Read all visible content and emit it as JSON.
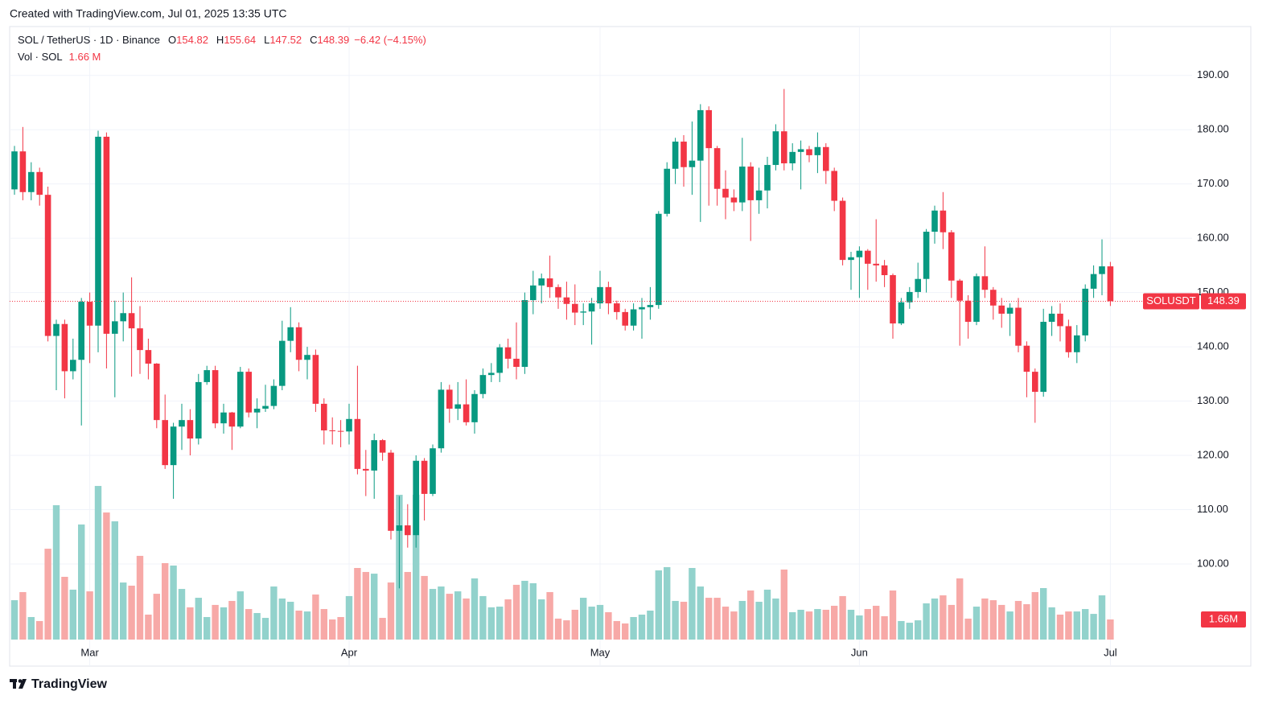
{
  "chart_data": {
    "type": "candlestick",
    "created": "Created with TradingView.com, Jul 01, 2025 13:35 UTC",
    "symbol": "SOL / TetherUS · 1D · Binance",
    "ohlc_labels": [
      "O",
      "H",
      "L",
      "C"
    ],
    "change": "−6.42 (−4.15%)",
    "volume_legend": {
      "label": "Vol · SOL",
      "value": "1.66 M"
    },
    "volume_axis_label": "1.66M",
    "symbol_code": "SOLUSDT",
    "footer": "TradingView",
    "up_color": "#089981",
    "down_color": "#f23645",
    "up_volume_color": "#92d2cc",
    "down_volume_color": "#f7a9a7",
    "grid": true,
    "categories": [
      null,
      null,
      null,
      null,
      null,
      null,
      null,
      null,
      null,
      "Mar",
      null,
      null,
      null,
      null,
      null,
      null,
      null,
      null,
      null,
      null,
      null,
      null,
      null,
      null,
      null,
      null,
      null,
      null,
      null,
      null,
      null,
      null,
      null,
      null,
      null,
      null,
      null,
      null,
      null,
      null,
      "Apr",
      null,
      null,
      null,
      null,
      null,
      null,
      null,
      null,
      null,
      null,
      null,
      null,
      null,
      null,
      null,
      null,
      null,
      null,
      null,
      null,
      null,
      null,
      null,
      null,
      null,
      null,
      null,
      null,
      null,
      "May",
      null,
      null,
      null,
      null,
      null,
      null,
      null,
      null,
      null,
      null,
      null,
      null,
      null,
      null,
      null,
      null,
      null,
      null,
      null,
      null,
      null,
      null,
      null,
      null,
      null,
      null,
      null,
      null,
      null,
      null,
      "Jun",
      null,
      null,
      null,
      null,
      null,
      null,
      null,
      null,
      null,
      null,
      null,
      null,
      null,
      null,
      null,
      null,
      null,
      null,
      null,
      null,
      null,
      null,
      null,
      null,
      null,
      null,
      null,
      null,
      null,
      "Jul"
    ],
    "open": [
      169,
      176,
      168.5,
      172.2,
      168,
      142,
      144.2,
      135.5,
      137.6,
      148.3,
      143.9,
      178.7,
      142.4,
      144.7,
      146.2,
      143.4,
      139.4,
      136.9,
      126.5,
      118.2,
      125.3,
      126.5,
      123.1,
      133.5,
      135.7,
      125.9,
      127.9,
      125.3,
      135.4,
      127.9,
      128.6,
      129.1,
      132.8,
      141.1,
      143.6,
      137.6,
      138.5,
      129.5,
      124.6,
      124.5,
      124.4,
      126.7,
      117.5,
      117.2,
      122.8,
      120.5,
      106.1,
      107.1,
      105.3,
      119,
      112.9,
      121.3,
      132.1,
      128.6,
      129.4,
      126.1,
      131.3,
      134.8,
      135.2,
      139.9,
      137.8,
      136.3,
      148.6,
      151.3,
      152.6,
      151,
      149.1,
      147.9,
      146.3,
      146.5,
      148,
      151,
      148,
      146.4,
      143.9,
      146.9,
      147.3,
      147.7,
      164.5,
      172.8,
      177.8,
      173.1,
      174.3,
      183.6,
      176.6,
      169.1,
      167.5,
      166.6,
      173.2,
      167,
      168.8,
      173.5,
      179.7,
      173.8,
      175.9,
      176.4,
      175.3,
      176.8,
      172.4,
      166.9,
      156,
      156.5,
      157.7,
      155.3,
      155,
      153.2,
      144.3,
      148.2,
      150.1,
      152.5,
      161.2,
      165.1,
      161.1,
      152.2,
      148.5,
      144.6,
      153,
      150.5,
      147.6,
      146.1,
      147.2,
      140.2,
      135.4,
      131.7,
      144.6,
      146.1,
      143.8,
      139,
      142.1,
      150.7,
      153.4,
      154.82
    ],
    "high": [
      177,
      180.5,
      174,
      173,
      169.5,
      145,
      145,
      141.5,
      149,
      150,
      179.8,
      179.5,
      148.5,
      150,
      152.8,
      147.5,
      141.5,
      137,
      131.2,
      126,
      129.5,
      128.5,
      135,
      136.5,
      136.5,
      129.5,
      128,
      136.3,
      136,
      130.5,
      133,
      134,
      144.8,
      147.3,
      144.5,
      140,
      139.5,
      130.5,
      127,
      126.5,
      129.5,
      136.5,
      121,
      124,
      123,
      121,
      112.5,
      111,
      120,
      119.5,
      122,
      133.5,
      133,
      133.5,
      134,
      132,
      136,
      137,
      140.5,
      141.5,
      144.5,
      150,
      154,
      153.5,
      156.8,
      151.5,
      152,
      151.5,
      148,
      149,
      154,
      152,
      148.5,
      147,
      148,
      149,
      151,
      165,
      174,
      178.5,
      179,
      181.5,
      184.7,
      184.3,
      177,
      172.5,
      169,
      178.5,
      174,
      173,
      175,
      181,
      187.5,
      177.5,
      178,
      177,
      179.5,
      177.5,
      173,
      167.5,
      157.5,
      158.5,
      158,
      163.5,
      156,
      153.5,
      149,
      151,
      155.5,
      161.7,
      166,
      168.5,
      161.5,
      152.5,
      149.5,
      153.5,
      158.5,
      151,
      149,
      148,
      149,
      141,
      136,
      147,
      147.5,
      148,
      145,
      144,
      151.5,
      155,
      159.8,
      155.64
    ],
    "low": [
      168,
      167,
      167,
      166,
      141,
      132,
      130.5,
      134,
      125.5,
      137,
      139,
      136,
      130.7,
      141,
      134.5,
      135,
      134,
      125,
      117.5,
      112,
      121,
      120,
      122,
      133,
      125,
      124,
      121,
      125,
      127,
      125,
      128,
      128.5,
      132,
      139,
      135.5,
      134,
      128,
      122,
      122,
      121.5,
      122,
      116.5,
      112.5,
      112,
      119,
      104.5,
      95.5,
      103,
      103,
      108,
      112.5,
      120.5,
      126,
      126.5,
      125.5,
      124,
      130.5,
      133.5,
      133.5,
      136,
      134,
      135,
      146,
      148,
      149,
      147,
      145,
      144,
      144,
      140.4,
      147,
      146,
      145,
      143,
      143,
      141.5,
      145,
      147,
      164,
      170,
      169.5,
      168,
      163,
      166,
      166,
      163.5,
      165,
      165,
      159.5,
      164.5,
      165.5,
      172.5,
      172.5,
      172.5,
      169,
      174,
      172,
      170,
      165,
      155,
      150.5,
      149,
      150.5,
      152,
      151,
      141.5,
      144,
      147,
      149,
      150,
      159,
      158,
      149,
      140.2,
      141.5,
      144,
      149,
      145,
      143.5,
      142,
      139,
      130.7,
      126,
      130.8,
      142,
      141,
      138,
      137,
      141,
      149,
      149.5,
      147.52
    ],
    "close": [
      176,
      168.5,
      172.2,
      168,
      142,
      144.2,
      135.5,
      137.6,
      148.3,
      143.9,
      178.7,
      142.4,
      144.7,
      146.2,
      143.4,
      139.4,
      136.9,
      126.5,
      118.2,
      125.3,
      126.5,
      123.1,
      133.5,
      135.7,
      125.9,
      127.9,
      125.3,
      135.4,
      127.9,
      128.6,
      129.1,
      132.8,
      141.1,
      143.6,
      137.6,
      138.5,
      129.5,
      124.6,
      124.5,
      124.4,
      126.7,
      117.5,
      117.2,
      122.8,
      120.5,
      106.1,
      107.1,
      105.3,
      119,
      112.9,
      121.3,
      132.1,
      128.6,
      129.4,
      126.1,
      131.3,
      134.8,
      135.2,
      139.9,
      137.8,
      136.3,
      148.6,
      151.3,
      152.6,
      151,
      149.1,
      147.9,
      146.3,
      146.5,
      148,
      151,
      148,
      146.4,
      143.9,
      146.9,
      147.3,
      147.7,
      164.5,
      172.8,
      177.8,
      173.1,
      174.3,
      183.6,
      176.6,
      169.1,
      167.5,
      166.6,
      173.2,
      167,
      168.8,
      173.5,
      179.7,
      173.8,
      175.9,
      176.4,
      175.3,
      176.8,
      172.4,
      166.9,
      156,
      156.5,
      157.7,
      155.3,
      155,
      153.2,
      144.3,
      148.2,
      150.1,
      152.5,
      161.2,
      165.1,
      161.1,
      152.2,
      148.5,
      144.6,
      153,
      150.5,
      147.6,
      146.1,
      147.2,
      140.2,
      135.4,
      131.7,
      144.6,
      146.1,
      143.8,
      139,
      142.1,
      150.7,
      153.4,
      154.82,
      148.39
    ],
    "volume": [
      3.25,
      3.92,
      1.86,
      1.53,
      7.5,
      11.09,
      5.18,
      4.12,
      9.5,
      3.98,
      12.68,
      10.49,
      9.76,
      4.71,
      4.45,
      6.91,
      2.06,
      3.78,
      6.31,
      6.11,
      4.18,
      2.66,
      3.45,
      1.86,
      2.86,
      2.66,
      3.19,
      3.98,
      2.52,
      2.19,
      1.79,
      4.38,
      3.39,
      3.12,
      2.39,
      2.32,
      3.72,
      2.52,
      1.66,
      1.86,
      3.59,
      5.91,
      5.58,
      5.44,
      1.79,
      4.71,
      11.95,
      5.58,
      11.95,
      5.25,
      4.18,
      4.38,
      3.78,
      3.98,
      3.39,
      5.05,
      3.59,
      2.66,
      2.72,
      3.32,
      4.52,
      4.85,
      4.65,
      3.32,
      3.92,
      1.73,
      1.59,
      2.46,
      3.45,
      2.72,
      2.86,
      2.26,
      1.53,
      1.33,
      1.86,
      2.06,
      2.39,
      5.71,
      5.98,
      3.19,
      3.12,
      5.91,
      4.38,
      3.45,
      3.45,
      2.72,
      2.32,
      3.19,
      4.05,
      3.12,
      4.12,
      3.39,
      5.78,
      2.26,
      2.46,
      2.32,
      2.52,
      2.46,
      2.79,
      3.59,
      2.46,
      1.99,
      2.52,
      2.79,
      1.93,
      4.05,
      1.53,
      1.39,
      1.59,
      2.99,
      3.39,
      3.65,
      2.86,
      5.05,
      1.73,
      2.72,
      3.39,
      3.25,
      2.86,
      2.32,
      3.19,
      2.92,
      3.92,
      4.25,
      2.66,
      2.06,
      2.32,
      2.32,
      2.52,
      2.12,
      3.65,
      1.66
    ],
    "ylim": [
      86.06,
      199.0
    ],
    "volume_ylim": [
      0,
      50.6
    ],
    "yticks": [
      {
        "value": 100,
        "label": "100.00"
      },
      {
        "value": 110,
        "label": "110.00"
      },
      {
        "value": 120,
        "label": "120.00"
      },
      {
        "value": 130,
        "label": "130.00"
      },
      {
        "value": 140,
        "label": "140.00"
      },
      {
        "value": 150,
        "label": "150.00"
      },
      {
        "value": 160,
        "label": "160.00"
      },
      {
        "value": 170,
        "label": "170.00"
      },
      {
        "value": 180,
        "label": "180.00"
      },
      {
        "value": 190,
        "label": "190.00"
      }
    ]
  }
}
